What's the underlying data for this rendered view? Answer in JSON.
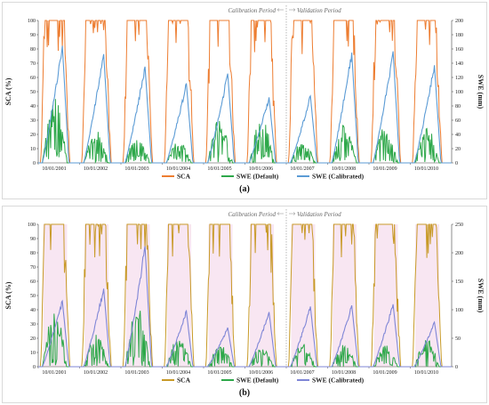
{
  "chart_data": [
    {
      "type": "line",
      "panel_label": "(a)",
      "ylabel_left": "SCA (%)",
      "ylabel_right": "SWE (mm)",
      "ylim_left": [
        0,
        100
      ],
      "ylim_right": [
        0,
        200
      ],
      "yticks_left": [
        "0",
        "10",
        "20",
        "30",
        "40",
        "50",
        "60",
        "70",
        "80",
        "90",
        "100"
      ],
      "yticks_right": [
        "0",
        "20",
        "40",
        "60",
        "80",
        "100",
        "120",
        "140",
        "160",
        "180",
        "200"
      ],
      "x_tick_labels": [
        "10/01/2001",
        "10/01/2002",
        "10/01/2003",
        "10/01/2004",
        "10/01/2005",
        "10/01/2006",
        "10/01/2007",
        "10/01/2008",
        "10/01/2009",
        "10/01/2010"
      ],
      "period_labels": {
        "calibration": "Calibration Period",
        "validation": "Validation Period"
      },
      "legend": [
        "SCA",
        "SWE (Default)",
        "SWE (Calibrated)"
      ],
      "colors": {
        "sca": "#ed7d31",
        "swe_default": "#2ea84a",
        "swe_calibrated": "#5b9bd5",
        "season_shade": "#ffffff"
      },
      "seasons": [
        {
          "water_year": "2001-2002",
          "sca_max": 100,
          "swe_default_peak_mm": 90,
          "swe_calibrated_peak_mm": 168
        },
        {
          "water_year": "2002-2003",
          "sca_max": 100,
          "swe_default_peak_mm": 48,
          "swe_calibrated_peak_mm": 156
        },
        {
          "water_year": "2003-2004",
          "sca_max": 100,
          "swe_default_peak_mm": 38,
          "swe_calibrated_peak_mm": 138
        },
        {
          "water_year": "2004-2005",
          "sca_max": 100,
          "swe_default_peak_mm": 30,
          "swe_calibrated_peak_mm": 114
        },
        {
          "water_year": "2005-2006",
          "sca_max": 100,
          "swe_default_peak_mm": 66,
          "swe_calibrated_peak_mm": 128
        },
        {
          "water_year": "2006-2007",
          "sca_max": 100,
          "swe_default_peak_mm": 64,
          "swe_calibrated_peak_mm": 94
        },
        {
          "water_year": "2007-2008",
          "sca_max": 100,
          "swe_default_peak_mm": 34,
          "swe_calibrated_peak_mm": 96
        },
        {
          "water_year": "2008-2009",
          "sca_max": 100,
          "swe_default_peak_mm": 54,
          "swe_calibrated_peak_mm": 158
        },
        {
          "water_year": "2009-2010",
          "sca_max": 100,
          "swe_default_peak_mm": 54,
          "swe_calibrated_peak_mm": 160
        },
        {
          "water_year": "2010-2011",
          "sca_max": 100,
          "swe_default_peak_mm": 50,
          "swe_calibrated_peak_mm": 140
        }
      ]
    },
    {
      "type": "line",
      "panel_label": "(b)",
      "ylabel_left": "SCA (%)",
      "ylabel_right": "SWE (mm)",
      "ylim_left": [
        0,
        100
      ],
      "ylim_right": [
        0,
        250
      ],
      "yticks_left": [
        "0",
        "10",
        "20",
        "30",
        "40",
        "50",
        "60",
        "70",
        "80",
        "90",
        "100"
      ],
      "yticks_right": [
        "0",
        "50",
        "100",
        "150",
        "200",
        "250"
      ],
      "x_tick_labels": [
        "10/01/2001",
        "10/01/2002",
        "10/01/2003",
        "10/01/2004",
        "10/01/2005",
        "10/01/2006",
        "10/01/2007",
        "10/01/2008",
        "10/01/2009",
        "10/01/2010"
      ],
      "period_labels": {
        "calibration": "Calibration Period",
        "validation": "Validation Period"
      },
      "legend": [
        "SCA",
        "SWE (Default)",
        "SWE (Calibrated)"
      ],
      "colors": {
        "sca": "#c89a28",
        "swe_default": "#2ea84a",
        "swe_calibrated": "#7f86d6",
        "season_shade": "#f8e6f2"
      },
      "seasons": [
        {
          "water_year": "2001-2002",
          "sca_max": 100,
          "swe_default_peak_mm": 100,
          "swe_calibrated_peak_mm": 118
        },
        {
          "water_year": "2002-2003",
          "sca_max": 100,
          "swe_default_peak_mm": 58,
          "swe_calibrated_peak_mm": 140
        },
        {
          "water_year": "2003-2004",
          "sca_max": 100,
          "swe_default_peak_mm": 112,
          "swe_calibrated_peak_mm": 216
        },
        {
          "water_year": "2004-2005",
          "sca_max": 100,
          "swe_default_peak_mm": 52,
          "swe_calibrated_peak_mm": 100
        },
        {
          "water_year": "2005-2006",
          "sca_max": 100,
          "swe_default_peak_mm": 40,
          "swe_calibrated_peak_mm": 70
        },
        {
          "water_year": "2006-2007",
          "sca_max": 100,
          "swe_default_peak_mm": 36,
          "swe_calibrated_peak_mm": 98
        },
        {
          "water_year": "2007-2008",
          "sca_max": 100,
          "swe_default_peak_mm": 42,
          "swe_calibrated_peak_mm": 108
        },
        {
          "water_year": "2008-2009",
          "sca_max": 100,
          "swe_default_peak_mm": 40,
          "swe_calibrated_peak_mm": 110
        },
        {
          "water_year": "2009-2010",
          "sca_max": 100,
          "swe_default_peak_mm": 38,
          "swe_calibrated_peak_mm": 112
        },
        {
          "water_year": "2010-2011",
          "sca_max": 100,
          "swe_default_peak_mm": 48,
          "swe_calibrated_peak_mm": 80
        }
      ]
    }
  ]
}
